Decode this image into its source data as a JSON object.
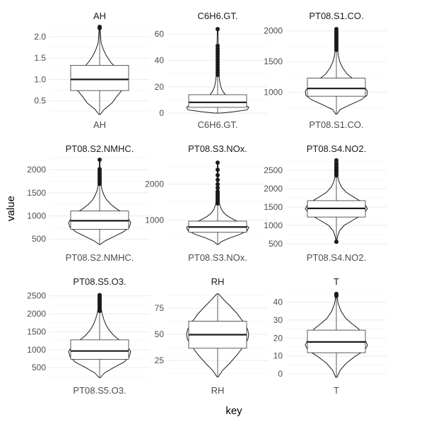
{
  "chart_data": {
    "type": "violin",
    "xlabel": "key",
    "ylabel": "value",
    "grid": true,
    "facets": [
      {
        "key": "AH",
        "title": "AH",
        "ylim": [
          0.18,
          2.28
        ],
        "yticks": [
          0.5,
          1.0,
          1.5,
          2.0
        ],
        "ytick_labels": [
          "0.5",
          "1.0",
          "1.5",
          "2.0"
        ],
        "box": {
          "q1": 0.74,
          "median": 1.0,
          "q3": 1.33,
          "whisker_low": 0.18,
          "whisker_high": 2.18
        },
        "outliers": [
          2.2,
          2.21,
          2.23
        ],
        "density": [
          [
            0.18,
            0.02
          ],
          [
            0.3,
            0.15
          ],
          [
            0.45,
            0.4
          ],
          [
            0.6,
            0.55
          ],
          [
            0.75,
            0.72
          ],
          [
            0.9,
            0.88
          ],
          [
            1.0,
            0.9
          ],
          [
            1.1,
            0.82
          ],
          [
            1.25,
            0.55
          ],
          [
            1.4,
            0.36
          ],
          [
            1.55,
            0.22
          ],
          [
            1.7,
            0.12
          ],
          [
            1.85,
            0.05
          ],
          [
            2.0,
            0.03
          ],
          [
            2.15,
            0.02
          ],
          [
            2.23,
            0.01
          ]
        ]
      },
      {
        "key": "C6H6.GT.",
        "title": "C6H6.GT.",
        "ylim": [
          -1,
          67
        ],
        "yticks": [
          0,
          20,
          40,
          60
        ],
        "ytick_labels": [
          "0",
          "20",
          "40",
          "60"
        ],
        "box": {
          "q1": 4.4,
          "median": 8.2,
          "q3": 14,
          "whisker_low": 0.1,
          "whisker_high": 28
        },
        "outliers": [
          29,
          31,
          33,
          35,
          37,
          39,
          41,
          43,
          45,
          47,
          49,
          51,
          63.7
        ],
        "density": [
          [
            0.1,
            0.1
          ],
          [
            1,
            0.5
          ],
          [
            2.5,
            0.95
          ],
          [
            4.5,
            1.0
          ],
          [
            6.5,
            0.85
          ],
          [
            9,
            0.55
          ],
          [
            12,
            0.32
          ],
          [
            16,
            0.18
          ],
          [
            20,
            0.1
          ],
          [
            25,
            0.06
          ],
          [
            30,
            0.04
          ],
          [
            40,
            0.025
          ],
          [
            52,
            0.02
          ],
          [
            63.7,
            0.01
          ]
        ]
      },
      {
        "key": "PT08.S1.CO.",
        "title": "PT08.S1.CO.",
        "ylim": [
          640,
          2100
        ],
        "yticks": [
          1000,
          1500,
          2000
        ],
        "ytick_labels": [
          "1000",
          "1500",
          "2000"
        ],
        "box": {
          "q1": 937,
          "median": 1063,
          "q3": 1231,
          "whisker_low": 647,
          "whisker_high": 1671
        },
        "outliers": [
          1690,
          1720,
          1750,
          1780,
          1810,
          1840,
          1870,
          1900,
          1930,
          1960,
          1990,
          2030
        ],
        "density": [
          [
            647,
            0.02
          ],
          [
            720,
            0.12
          ],
          [
            800,
            0.45
          ],
          [
            880,
            0.8
          ],
          [
            950,
            0.98
          ],
          [
            1020,
            1.0
          ],
          [
            1100,
            0.88
          ],
          [
            1200,
            0.58
          ],
          [
            1300,
            0.34
          ],
          [
            1400,
            0.2
          ],
          [
            1500,
            0.11
          ],
          [
            1600,
            0.06
          ],
          [
            1700,
            0.04
          ],
          [
            1850,
            0.02
          ],
          [
            2040,
            0.01
          ]
        ]
      },
      {
        "key": "PT08.S2.NMHC.",
        "title": "PT08.S2.NMHC.",
        "ylim": [
          320,
          2260
        ],
        "yticks": [
          500,
          1000,
          1500,
          2000
        ],
        "ytick_labels": [
          "500",
          "1000",
          "1500",
          "2000"
        ],
        "box": {
          "q1": 711,
          "median": 895,
          "q3": 1105,
          "whisker_low": 383,
          "whisker_high": 1670
        },
        "outliers": [
          1690,
          1730,
          1770,
          1810,
          1850,
          1890,
          1930,
          1970,
          2010,
          2214
        ],
        "density": [
          [
            383,
            0.02
          ],
          [
            450,
            0.15
          ],
          [
            550,
            0.45
          ],
          [
            650,
            0.75
          ],
          [
            750,
            0.95
          ],
          [
            850,
            1.0
          ],
          [
            950,
            0.92
          ],
          [
            1050,
            0.78
          ],
          [
            1150,
            0.55
          ],
          [
            1250,
            0.36
          ],
          [
            1350,
            0.22
          ],
          [
            1450,
            0.14
          ],
          [
            1550,
            0.08
          ],
          [
            1700,
            0.04
          ],
          [
            1900,
            0.02
          ],
          [
            2214,
            0.01
          ]
        ]
      },
      {
        "key": "PT08.S3.NOx.",
        "title": "PT08.S3.NOx.",
        "ylim": [
          240,
          2740
        ],
        "yticks": [
          1000,
          2000
        ],
        "ytick_labels": [
          "1000",
          "2000"
        ],
        "box": {
          "q1": 658,
          "median": 806,
          "q3": 969,
          "whisker_low": 322,
          "whisker_high": 1436
        },
        "outliers": [
          1460,
          1500,
          1540,
          1580,
          1620,
          1660,
          1700,
          1750,
          1800,
          1900,
          2000,
          2120,
          2250,
          2400,
          2600
        ],
        "density": [
          [
            322,
            0.02
          ],
          [
            400,
            0.12
          ],
          [
            500,
            0.38
          ],
          [
            600,
            0.72
          ],
          [
            700,
            0.95
          ],
          [
            800,
            1.0
          ],
          [
            900,
            0.8
          ],
          [
            1000,
            0.55
          ],
          [
            1100,
            0.34
          ],
          [
            1200,
            0.2
          ],
          [
            1300,
            0.12
          ],
          [
            1450,
            0.06
          ],
          [
            1650,
            0.035
          ],
          [
            2000,
            0.02
          ],
          [
            2600,
            0.008
          ]
        ]
      },
      {
        "key": "PT08.S4.NO2.",
        "title": "PT08.S4.NO2.",
        "ylim": [
          400,
          2850
        ],
        "yticks": [
          500,
          1000,
          1500,
          2000,
          2500
        ],
        "ytick_labels": [
          "500",
          "1000",
          "1500",
          "2000",
          "2500"
        ],
        "box": {
          "q1": 1227,
          "median": 1463,
          "q3": 1674,
          "whisker_low": 551,
          "whisker_high": 2340
        },
        "outliers": [
          551,
          2360,
          2400,
          2440,
          2480,
          2520,
          2560,
          2600,
          2650,
          2700,
          2775
        ],
        "density": [
          [
            551,
            0.01
          ],
          [
            700,
            0.04
          ],
          [
            850,
            0.1
          ],
          [
            1000,
            0.25
          ],
          [
            1150,
            0.55
          ],
          [
            1300,
            0.85
          ],
          [
            1450,
            1.0
          ],
          [
            1600,
            0.9
          ],
          [
            1750,
            0.6
          ],
          [
            1900,
            0.32
          ],
          [
            2050,
            0.16
          ],
          [
            2200,
            0.08
          ],
          [
            2350,
            0.04
          ],
          [
            2550,
            0.02
          ],
          [
            2775,
            0.01
          ]
        ]
      },
      {
        "key": "PT08.S5.O3.",
        "title": "PT08.S5.O3.",
        "ylim": [
          150,
          2650
        ],
        "yticks": [
          500,
          1000,
          1500,
          2000,
          2500
        ],
        "ytick_labels": [
          "500",
          "1000",
          "1500",
          "2000",
          "2500"
        ],
        "box": {
          "q1": 732,
          "median": 963,
          "q3": 1274,
          "whisker_low": 221,
          "whisker_high": 2060
        },
        "outliers": [
          2080,
          2120,
          2160,
          2200,
          2240,
          2280,
          2320,
          2360,
          2400,
          2440,
          2480,
          2523
        ],
        "density": [
          [
            221,
            0.02
          ],
          [
            350,
            0.15
          ],
          [
            500,
            0.45
          ],
          [
            650,
            0.78
          ],
          [
            800,
            0.95
          ],
          [
            950,
            1.0
          ],
          [
            1100,
            0.88
          ],
          [
            1250,
            0.66
          ],
          [
            1400,
            0.45
          ],
          [
            1550,
            0.3
          ],
          [
            1700,
            0.2
          ],
          [
            1850,
            0.13
          ],
          [
            2000,
            0.08
          ],
          [
            2200,
            0.04
          ],
          [
            2400,
            0.02
          ],
          [
            2523,
            0.01
          ]
        ]
      },
      {
        "key": "RH",
        "title": "RH",
        "ylim": [
          6,
          92
        ],
        "yticks": [
          25,
          50,
          75
        ],
        "ytick_labels": [
          "25",
          "50",
          "75"
        ],
        "box": {
          "q1": 36.6,
          "median": 49.6,
          "q3": 62.5,
          "whisker_low": 9.2,
          "whisker_high": 88.7
        },
        "outliers": [],
        "density": [
          [
            9.2,
            0.02
          ],
          [
            15,
            0.15
          ],
          [
            22,
            0.38
          ],
          [
            30,
            0.62
          ],
          [
            38,
            0.82
          ],
          [
            45,
            0.97
          ],
          [
            50,
            1.0
          ],
          [
            55,
            0.96
          ],
          [
            62,
            0.82
          ],
          [
            70,
            0.62
          ],
          [
            77,
            0.4
          ],
          [
            83,
            0.2
          ],
          [
            88.7,
            0.03
          ]
        ]
      },
      {
        "key": "T",
        "title": "T",
        "ylim": [
          -3.5,
          46.5
        ],
        "yticks": [
          0,
          10,
          20,
          30,
          40
        ],
        "ytick_labels": [
          "0",
          "10",
          "20",
          "30",
          "40"
        ],
        "box": {
          "q1": 11.8,
          "median": 17.8,
          "q3": 24.4,
          "whisker_low": -1.9,
          "whisker_high": 43
        },
        "outliers": [
          43.4,
          43.8,
          44.1,
          44.6
        ],
        "density": [
          [
            -1.9,
            0.02
          ],
          [
            2,
            0.12
          ],
          [
            6,
            0.32
          ],
          [
            10,
            0.62
          ],
          [
            13,
            0.9
          ],
          [
            16,
            1.0
          ],
          [
            19,
            0.92
          ],
          [
            22,
            0.86
          ],
          [
            25,
            0.72
          ],
          [
            28,
            0.5
          ],
          [
            31,
            0.3
          ],
          [
            35,
            0.15
          ],
          [
            39,
            0.06
          ],
          [
            43,
            0.02
          ],
          [
            44.6,
            0.01
          ]
        ]
      }
    ]
  }
}
